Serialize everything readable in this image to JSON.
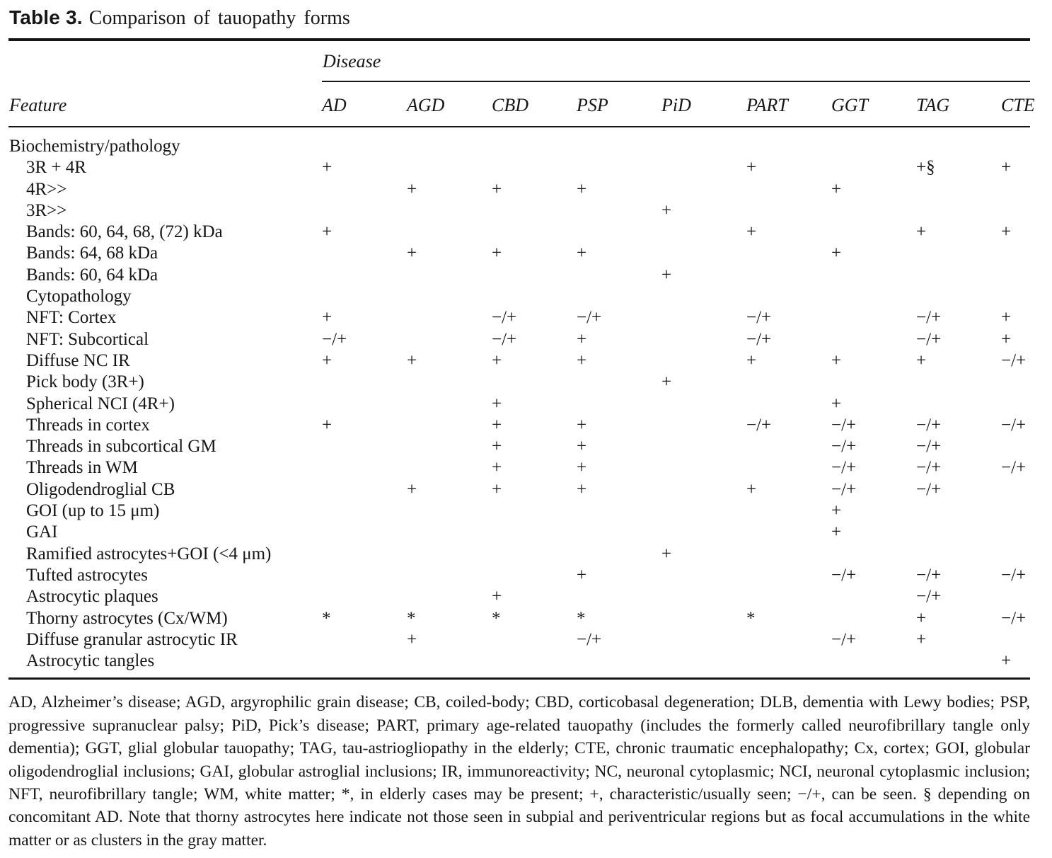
{
  "colors": {
    "ink": "#161616",
    "background": "#ffffff"
  },
  "caption": {
    "label": "Table 3.",
    "title": "Comparison of tauopathy forms"
  },
  "table": {
    "group_header": "Disease",
    "feature_header": "Feature",
    "columns": [
      "AD",
      "AGD",
      "CBD",
      "PSP",
      "PiD",
      "PART",
      "GGT",
      "TAG",
      "CTE"
    ],
    "rows": [
      {
        "feature": "Biochemistry/pathology",
        "indent": 0,
        "values": [
          "",
          "",
          "",
          "",
          "",
          "",
          "",
          "",
          ""
        ]
      },
      {
        "feature": "3R + 4R",
        "indent": 1,
        "values": [
          "+",
          "",
          "",
          "",
          "",
          "+",
          "",
          "+§",
          "+"
        ]
      },
      {
        "feature": "4R>>",
        "indent": 1,
        "values": [
          "",
          "+",
          "+",
          "+",
          "",
          "",
          "+",
          "",
          ""
        ]
      },
      {
        "feature": "3R>>",
        "indent": 1,
        "values": [
          "",
          "",
          "",
          "",
          "+",
          "",
          "",
          "",
          ""
        ]
      },
      {
        "feature": "Bands: 60, 64, 68, (72) kDa",
        "indent": 1,
        "values": [
          "+",
          "",
          "",
          "",
          "",
          "+",
          "",
          "+",
          "+"
        ]
      },
      {
        "feature": "Bands: 64, 68 kDa",
        "indent": 1,
        "values": [
          "",
          "+",
          "+",
          "+",
          "",
          "",
          "+",
          "",
          ""
        ]
      },
      {
        "feature": "Bands: 60, 64 kDa",
        "indent": 1,
        "values": [
          "",
          "",
          "",
          "",
          "+",
          "",
          "",
          "",
          ""
        ]
      },
      {
        "feature": "Cytopathology",
        "indent": 1,
        "values": [
          "",
          "",
          "",
          "",
          "",
          "",
          "",
          "",
          ""
        ]
      },
      {
        "feature": "NFT: Cortex",
        "indent": 1,
        "values": [
          "+",
          "",
          "−/+",
          "−/+",
          "",
          "−/+",
          "",
          "−/+",
          "+"
        ]
      },
      {
        "feature": "NFT: Subcortical",
        "indent": 1,
        "values": [
          "−/+",
          "",
          "−/+",
          "+",
          "",
          "−/+",
          "",
          "−/+",
          "+"
        ]
      },
      {
        "feature": "Diffuse NC IR",
        "indent": 1,
        "values": [
          "+",
          "+",
          "+",
          "+",
          "",
          "+",
          "+",
          "+",
          "−/+"
        ]
      },
      {
        "feature": "Pick body (3R+)",
        "indent": 1,
        "values": [
          "",
          "",
          "",
          "",
          "+",
          "",
          "",
          "",
          ""
        ]
      },
      {
        "feature": "Spherical NCI (4R+)",
        "indent": 1,
        "values": [
          "",
          "",
          "+",
          "",
          "",
          "",
          "+",
          "",
          ""
        ]
      },
      {
        "feature": "Threads in cortex",
        "indent": 1,
        "values": [
          "+",
          "",
          "+",
          "+",
          "",
          "−/+",
          "−/+",
          "−/+",
          "−/+"
        ]
      },
      {
        "feature": "Threads in subcortical GM",
        "indent": 1,
        "values": [
          "",
          "",
          "+",
          "+",
          "",
          "",
          "−/+",
          "−/+",
          ""
        ]
      },
      {
        "feature": "Threads in WM",
        "indent": 1,
        "values": [
          "",
          "",
          "+",
          "+",
          "",
          "",
          "−/+",
          "−/+",
          "−/+"
        ]
      },
      {
        "feature": "Oligodendroglial CB",
        "indent": 1,
        "values": [
          "",
          "+",
          "+",
          "+",
          "",
          "+",
          "−/+",
          "−/+",
          ""
        ]
      },
      {
        "feature": "GOI (up to 15 μm)",
        "indent": 1,
        "values": [
          "",
          "",
          "",
          "",
          "",
          "",
          "+",
          "",
          ""
        ]
      },
      {
        "feature": "GAI",
        "indent": 1,
        "values": [
          "",
          "",
          "",
          "",
          "",
          "",
          "+",
          "",
          ""
        ]
      },
      {
        "feature": "Ramified astrocytes+GOI (<4 μm)",
        "indent": 1,
        "values": [
          "",
          "",
          "",
          "",
          "+",
          "",
          "",
          "",
          ""
        ]
      },
      {
        "feature": "Tufted astrocytes",
        "indent": 1,
        "values": [
          "",
          "",
          "",
          "+",
          "",
          "",
          "−/+",
          "−/+",
          "−/+"
        ]
      },
      {
        "feature": "Astrocytic plaques",
        "indent": 1,
        "values": [
          "",
          "",
          "+",
          "",
          "",
          "",
          "",
          "−/+",
          ""
        ]
      },
      {
        "feature": "Thorny astrocytes (Cx/WM)",
        "indent": 1,
        "values": [
          "*",
          "*",
          "*",
          "*",
          "",
          "*",
          "",
          "+",
          "−/+"
        ]
      },
      {
        "feature": "Diffuse granular astrocytic IR",
        "indent": 1,
        "values": [
          "",
          "+",
          "",
          "−/+",
          "",
          "",
          "−/+",
          "+",
          ""
        ]
      },
      {
        "feature": "Astrocytic tangles",
        "indent": 1,
        "values": [
          "",
          "",
          "",
          "",
          "",
          "",
          "",
          "",
          "+"
        ]
      }
    ]
  },
  "footnote": "AD, Alzheimer’s disease; AGD, argyrophilic grain disease; CB, coiled-body; CBD, corticobasal degeneration; DLB, dementia with Lewy bodies; PSP, progressive supranuclear palsy; PiD, Pick’s disease; PART, primary age-related tauopathy (includes the formerly called neurofibrillary tangle only dementia); GGT, glial globular tauopathy; TAG, tau-astriogliopathy in the elderly; CTE, chronic traumatic encephalopathy; Cx, cortex; GOI, globular oligodendroglial inclusions; GAI, globular astroglial inclusions; IR, immunoreactivity; NC, neuronal cytoplasmic; NCI, neuronal cytoplasmic inclusion; NFT, neurofibrillary tangle; WM, white matter; *, in elderly cases may be present; +, characteristic/usually seen; −/+, can be seen. § depending on concomitant AD. Note that thorny astrocytes here indicate not those seen in subpial and periventricular regions but as focal accumulations in the white matter or as clusters in the gray matter."
}
